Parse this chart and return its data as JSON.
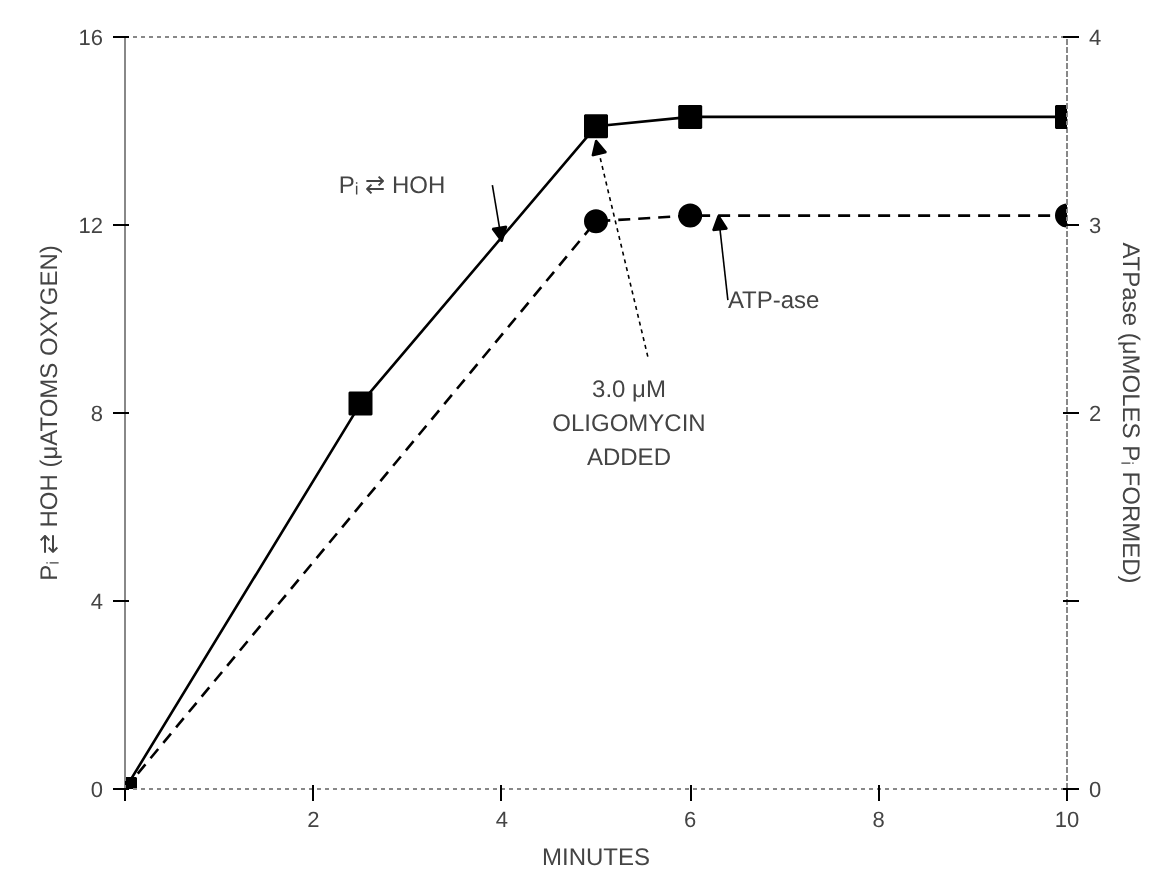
{
  "chart_data": {
    "type": "line",
    "xlabel": "MINUTES",
    "ylabel": "Pᵢ ⇄ HOH (μATOMS OXYGEN)",
    "y2label": "ATPase (μMOLES Pᵢ FORMED)",
    "xlim": [
      0,
      10
    ],
    "xticks": [
      {
        "value": 0,
        "label": null
      },
      2,
      4,
      6,
      8,
      10
    ],
    "ylim": [
      0,
      16
    ],
    "yticks": [
      0,
      4,
      8,
      12,
      16
    ],
    "y2lim": [
      0,
      4
    ],
    "y2ticks": [
      0,
      {
        "value": 1,
        "label": null
      },
      2,
      3,
      4
    ],
    "grid": false,
    "series": [
      {
        "name": "Pᵢ ⇄ HOH",
        "color": "#000000",
        "x": [
          0,
          2.5,
          5,
          6,
          10
        ],
        "values": [
          0,
          8.2,
          14.1,
          14.3,
          14.3
        ],
        "marker": "square",
        "line_style": "solid"
      },
      {
        "name": "ATP-ase",
        "color": "#000000",
        "x": [
          0,
          5,
          6,
          10
        ],
        "values": [
          0,
          3.02,
          3.05,
          3.05
        ],
        "marker": "circle",
        "line_style": "dashed",
        "axis": "y2"
      }
    ],
    "annotations": [
      {
        "text": "3.0 μM\nOLIGOMYCIN\nADDED",
        "x": 5,
        "y": 14.1
      }
    ]
  }
}
